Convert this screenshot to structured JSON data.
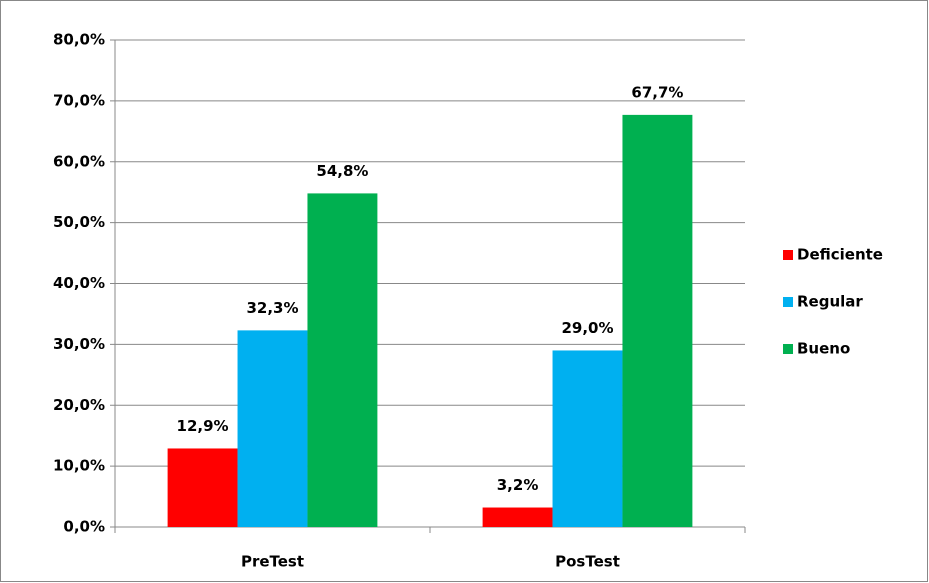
{
  "chart_data": {
    "type": "bar",
    "categories": [
      "PreTest",
      "PosTest"
    ],
    "series": [
      {
        "name": "Deficiente",
        "color": "#ff0000",
        "values": [
          12.9,
          3.2
        ],
        "value_labels": [
          "12,9%",
          "3,2%"
        ]
      },
      {
        "name": "Regular",
        "color": "#00b0f0",
        "values": [
          32.3,
          29.0
        ],
        "value_labels": [
          "32,3%",
          "29,0%"
        ]
      },
      {
        "name": "Bueno",
        "color": "#00b050",
        "values": [
          54.8,
          67.7
        ],
        "value_labels": [
          "54,8%",
          "67,7%"
        ]
      }
    ],
    "ylim": [
      0,
      80
    ],
    "yticks": [
      {
        "value": 0,
        "label": "0,0%"
      },
      {
        "value": 10,
        "label": "10,0%"
      },
      {
        "value": 20,
        "label": "20,0%"
      },
      {
        "value": 30,
        "label": "30,0%"
      },
      {
        "value": 40,
        "label": "40,0%"
      },
      {
        "value": 50,
        "label": "50,0%"
      },
      {
        "value": 60,
        "label": "60,0%"
      },
      {
        "value": 70,
        "label": "70,0%"
      },
      {
        "value": 80,
        "label": "80,0%"
      }
    ],
    "grid": true,
    "legend": "right"
  }
}
